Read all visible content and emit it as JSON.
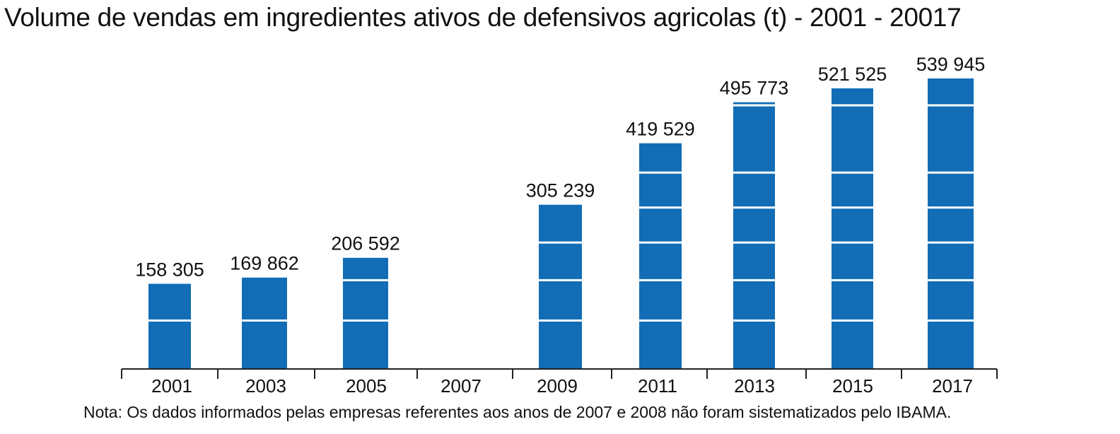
{
  "title": "Volume de vendas em ingredientes ativos de defensivos agricolas (t) - 2001 - 20017",
  "note": "Nota: Os dados informados pelas empresas referentes aos anos de 2007 e 2008 não foram sistematizados pelo IBAMA.",
  "colors": {
    "bar": "#126db6",
    "band": "#ffffff",
    "axis": "#222222"
  },
  "chart_data": {
    "type": "bar",
    "title": "Volume de vendas em ingredientes ativos de defensivos agricolas (t) - 2001 - 20017",
    "categories": [
      "2001",
      "2003",
      "2005",
      "2007",
      "2009",
      "2011",
      "2013",
      "2015",
      "2017"
    ],
    "values": [
      158305,
      169862,
      206592,
      null,
      305239,
      419529,
      495773,
      521525,
      539945
    ],
    "data_labels": [
      "158 305",
      "169 862",
      "206 592",
      "",
      "305 239",
      "419 529",
      "495 773",
      "521 525",
      "539 945"
    ],
    "xlabel": "",
    "ylabel": "",
    "ylim": [
      0,
      600000
    ],
    "band_lines": [
      90000,
      165000,
      235000,
      300000,
      365000,
      490000
    ],
    "grid": false,
    "legend": "none"
  }
}
